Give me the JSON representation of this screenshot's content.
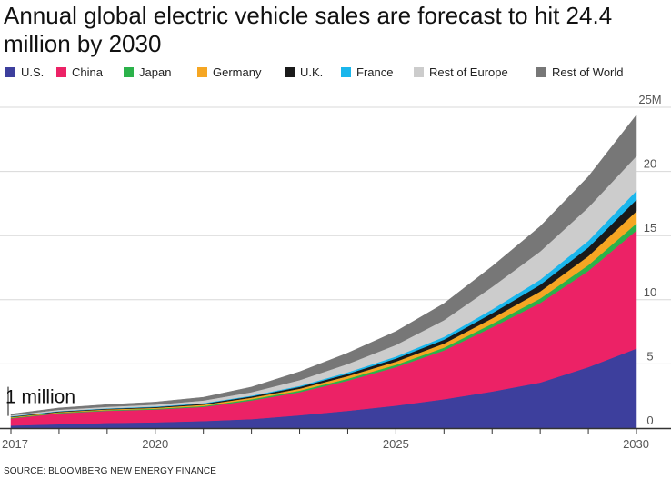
{
  "title": "Annual global electric vehicle sales are forecast to hit 24.4 million by 2030",
  "source": "SOURCE: BLOOMBERG NEW ENERGY FINANCE",
  "colors": {
    "us": "#3d3f9d",
    "china": "#ec2266",
    "japan": "#2bb24a",
    "germany": "#f5a623",
    "uk": "#1a1a1a",
    "france": "#1ab6ec",
    "rest_of_europe": "#cccccc",
    "rest_of_world": "#777777",
    "grid": "#d8d8d8",
    "axis": "#333333"
  },
  "chart_data": {
    "type": "area",
    "stacked": true,
    "title": "Annual global electric vehicle sales are forecast to hit 24.4 million by 2030",
    "xlabel": "",
    "ylabel": "",
    "x": [
      2017,
      2018,
      2019,
      2020,
      2021,
      2022,
      2023,
      2024,
      2025,
      2026,
      2027,
      2028,
      2029,
      2030
    ],
    "x_tick_labels": [
      "2017",
      "2020",
      "2025",
      "2030"
    ],
    "ylim": [
      0,
      25
    ],
    "y_ticks": [
      0,
      5,
      10,
      15,
      20,
      25
    ],
    "y_tick_labels": [
      "0",
      "5",
      "10",
      "15",
      "20",
      "25M"
    ],
    "grid": true,
    "legend_position": "top",
    "annotation": "1 million",
    "series": [
      {
        "name": "U.S.",
        "color_key": "us",
        "values": [
          0.2,
          0.3,
          0.4,
          0.45,
          0.55,
          0.7,
          1.0,
          1.35,
          1.75,
          2.25,
          2.85,
          3.55,
          4.75,
          6.2
        ]
      },
      {
        "name": "China",
        "color_key": "china",
        "values": [
          0.55,
          0.85,
          0.95,
          1.0,
          1.1,
          1.45,
          1.8,
          2.35,
          3.0,
          3.8,
          5.0,
          6.2,
          7.5,
          9.2
        ]
      },
      {
        "name": "Japan",
        "color_key": "japan",
        "values": [
          0.05,
          0.05,
          0.05,
          0.06,
          0.07,
          0.1,
          0.12,
          0.15,
          0.18,
          0.22,
          0.28,
          0.35,
          0.45,
          0.55
        ]
      },
      {
        "name": "Germany",
        "color_key": "germany",
        "values": [
          0.05,
          0.05,
          0.06,
          0.07,
          0.1,
          0.12,
          0.15,
          0.2,
          0.25,
          0.32,
          0.42,
          0.55,
          0.7,
          0.95
        ]
      },
      {
        "name": "U.K.",
        "color_key": "uk",
        "values": [
          0.04,
          0.05,
          0.05,
          0.06,
          0.08,
          0.1,
          0.14,
          0.18,
          0.24,
          0.3,
          0.4,
          0.52,
          0.68,
          0.9
        ]
      },
      {
        "name": "France",
        "color_key": "france",
        "values": [
          0.03,
          0.03,
          0.03,
          0.04,
          0.05,
          0.06,
          0.08,
          0.12,
          0.16,
          0.22,
          0.3,
          0.4,
          0.52,
          0.7
        ]
      },
      {
        "name": "Rest of Europe",
        "color_key": "rest_of_europe",
        "values": [
          0.07,
          0.1,
          0.12,
          0.15,
          0.2,
          0.27,
          0.45,
          0.65,
          0.9,
          1.3,
          1.75,
          2.2,
          2.6,
          2.7
        ]
      },
      {
        "name": "Rest of World",
        "color_key": "rest_of_world",
        "values": [
          0.1,
          0.14,
          0.17,
          0.2,
          0.25,
          0.4,
          0.65,
          0.85,
          1.05,
          1.3,
          1.6,
          1.95,
          2.4,
          3.2
        ]
      }
    ]
  }
}
